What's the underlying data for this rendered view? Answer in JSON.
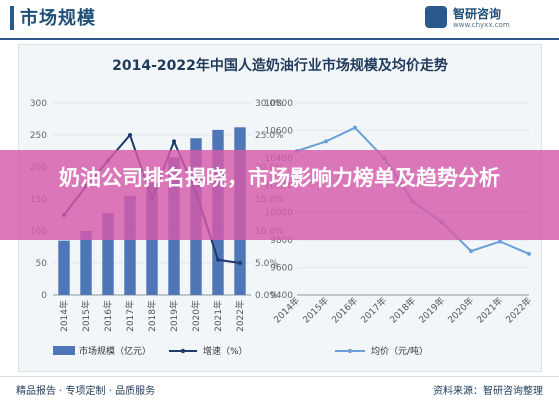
{
  "header": {
    "title": "市场规模",
    "logo_name": "智研咨询",
    "logo_url": "www.chyxx.com"
  },
  "overlay": {
    "headline": "奶油公司排名揭晓，市场影响力榜单及趋势分析"
  },
  "footer": {
    "left": "精品报告 · 专项定制 · 品质服务",
    "right": "资料来源：智研咨询整理"
  },
  "chart_data": [
    {
      "type": "bar",
      "title": "2014-2022年中国人造奶油行业市场规模及均价走势",
      "categories": [
        "2014年",
        "2015年",
        "2016年",
        "2017年",
        "2018年",
        "2019年",
        "2020年",
        "2021年",
        "2022年"
      ],
      "series": [
        {
          "name": "市场规模（亿元）",
          "type": "bar",
          "axis": "left",
          "values": [
            85,
            100,
            128,
            155,
            175,
            215,
            245,
            258,
            262
          ]
        },
        {
          "name": "增速（%）",
          "type": "line",
          "axis": "right",
          "values": [
            12.5,
            17.0,
            21.0,
            25.0,
            15.0,
            24.0,
            16.0,
            5.5,
            5.0
          ]
        }
      ],
      "ylim_left": [
        0,
        300
      ],
      "yticks_left": [
        "0",
        "50",
        "100",
        "150",
        "200",
        "250",
        "300"
      ],
      "ylim_right": [
        0,
        30
      ],
      "yticks_right": [
        "0.0%",
        "5.0%",
        "10.0%",
        "15.0%",
        "20.0%",
        "25.0%",
        "30.0%"
      ],
      "legend_position": "bottom",
      "colors": {
        "bar": "#4f77b8",
        "line": "#1f3a6a"
      }
    },
    {
      "type": "line",
      "categories": [
        "2014年",
        "2015年",
        "2016年",
        "2017年",
        "2018年",
        "2019年",
        "2020年",
        "2021年",
        "2022年"
      ],
      "series": [
        {
          "name": "均价（元/吨）",
          "values": [
            10450,
            10520,
            10620,
            10400,
            10080,
            9930,
            9720,
            9790,
            9700
          ]
        }
      ],
      "ylim": [
        9400,
        10800
      ],
      "yticks": [
        "9400",
        "9600",
        "9800",
        "10000",
        "10200",
        "10400",
        "10600",
        "10800"
      ],
      "legend_position": "bottom",
      "colors": {
        "line": "#6a9fd8"
      }
    }
  ]
}
